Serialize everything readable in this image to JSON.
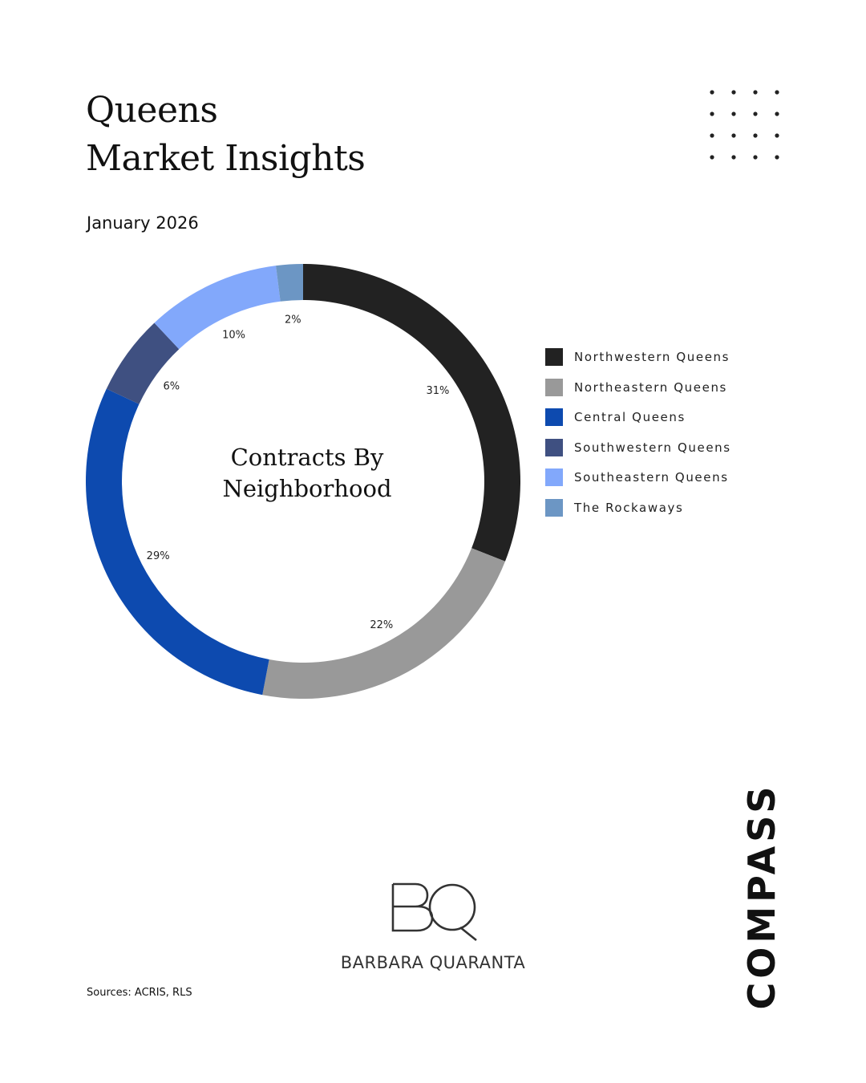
{
  "header": {
    "title_line1": "Queens",
    "title_line2": "Market Insights",
    "date": "January 2026"
  },
  "chart_data": {
    "type": "pie",
    "title": "Contracts By Neighborhood",
    "title_lines": [
      "Contracts By",
      "Neighborhood"
    ],
    "categories": [
      "Northwestern Queens",
      "Northeastern Queens",
      "Central Queens",
      "Southwestern Queens",
      "Southeastern Queens",
      "The Rockaways"
    ],
    "values": [
      31,
      22,
      29,
      6,
      10,
      2
    ],
    "labels": [
      "31%",
      "22%",
      "29%",
      "6%",
      "10%",
      "2%"
    ],
    "colors": [
      "#222222",
      "#999999",
      "#0d4aaf",
      "#3f5081",
      "#82a8fb",
      "#6c96c4"
    ],
    "donut": true,
    "legend": "right",
    "unit": "%"
  },
  "logos": {
    "bq_monogram": "BQ",
    "bq_name": "BARBARA QUARANTA",
    "compass": "COMPASS"
  },
  "footer": {
    "sources": "Sources: ACRIS, RLS"
  }
}
